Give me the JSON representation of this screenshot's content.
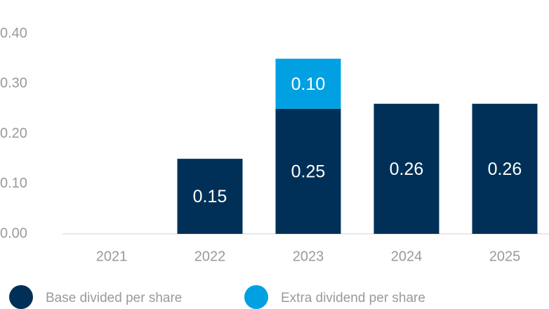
{
  "chart_data": {
    "type": "stacked_bar",
    "categories": [
      "2021",
      "2022",
      "2023",
      "2024",
      "2025"
    ],
    "series": [
      {
        "name": "Base divided per share",
        "color": "#003057",
        "values": [
          null,
          0.15,
          0.25,
          0.26,
          0.26
        ]
      },
      {
        "name": "Extra dividend per share",
        "color": "#00a0e3",
        "values": [
          null,
          null,
          0.1,
          null,
          null
        ],
        "value_labels": [
          null,
          null,
          "0.10",
          null,
          null
        ]
      }
    ],
    "ylim": [
      0,
      0.4
    ],
    "yticks": [
      {
        "value": 0,
        "label": "0.00"
      },
      {
        "value": 0.1,
        "label": "0.10"
      },
      {
        "value": 0.2,
        "label": "0.20"
      },
      {
        "value": 0.3,
        "label": "0.30"
      },
      {
        "value": 0.4,
        "label": "0.40"
      }
    ],
    "grid": false,
    "legend": "bottom"
  }
}
